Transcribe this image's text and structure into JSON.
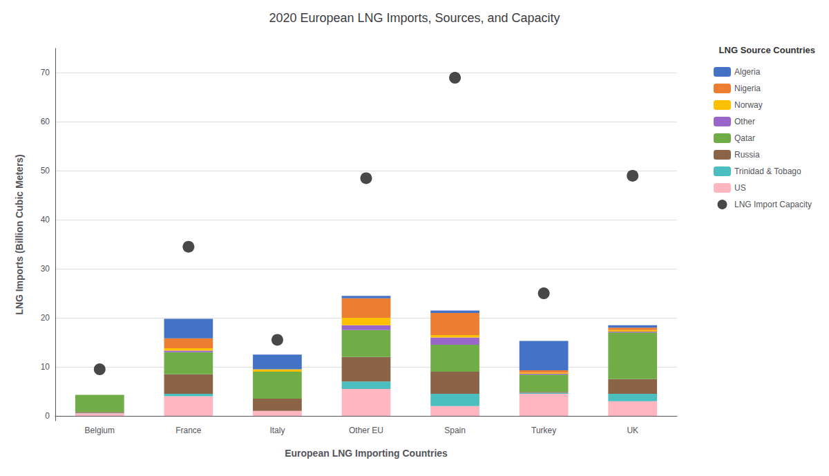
{
  "chart_data": {
    "type": "bar",
    "title": "2020 European LNG Imports, Sources, and Capacity",
    "xlabel": "European LNG Importing Countries",
    "ylabel": "LNG Imports (Billion Cubic Meters)",
    "legend_title": "LNG Source Countries",
    "categories": [
      "Belgium",
      "France",
      "Italy",
      "Other EU",
      "Spain",
      "Turkey",
      "UK"
    ],
    "stacked": true,
    "series": [
      {
        "name": "Algeria",
        "type": "bar",
        "color": "#4472C4",
        "values": [
          0.0,
          4.0,
          3.0,
          0.5,
          0.5,
          6.0,
          0.5
        ]
      },
      {
        "name": "Nigeria",
        "type": "bar",
        "color": "#ED7D31",
        "values": [
          0.0,
          2.0,
          0.0,
          4.0,
          4.5,
          0.5,
          0.5
        ]
      },
      {
        "name": "Norway",
        "type": "bar",
        "color": "#FFC000",
        "values": [
          0.0,
          0.5,
          0.5,
          1.5,
          0.5,
          0.2,
          0.3
        ]
      },
      {
        "name": "Other",
        "type": "bar",
        "color": "#9966CC",
        "values": [
          0.0,
          0.3,
          0.0,
          1.0,
          1.5,
          0.2,
          0.2
        ]
      },
      {
        "name": "Qatar",
        "type": "bar",
        "color": "#70AD47",
        "values": [
          3.5,
          4.5,
          5.5,
          5.5,
          5.5,
          3.5,
          9.5
        ]
      },
      {
        "name": "Russia",
        "type": "bar",
        "color": "#8B6347",
        "values": [
          0.2,
          4.0,
          2.5,
          5.0,
          4.5,
          0.2,
          3.0
        ]
      },
      {
        "name": "Trinidad & Tobago",
        "type": "bar",
        "color": "#4BBFBF",
        "values": [
          0.1,
          0.5,
          0.0,
          1.5,
          2.5,
          0.2,
          1.5
        ]
      },
      {
        "name": "US",
        "type": "bar",
        "color": "#FFB6C1",
        "values": [
          0.5,
          4.0,
          1.0,
          5.5,
          2.0,
          4.5,
          3.0
        ]
      },
      {
        "name": "LNG Import Capacity",
        "type": "scatter",
        "color": "#1a1a1a",
        "marker": "circle",
        "values": [
          9.5,
          34.5,
          15.5,
          48.5,
          69.0,
          25.0,
          49.0
        ]
      }
    ],
    "ylim": [
      -1,
      75
    ],
    "yticks": [
      0,
      10,
      20,
      30,
      40,
      50,
      60,
      70
    ],
    "grid": true,
    "legend": "upper right"
  }
}
